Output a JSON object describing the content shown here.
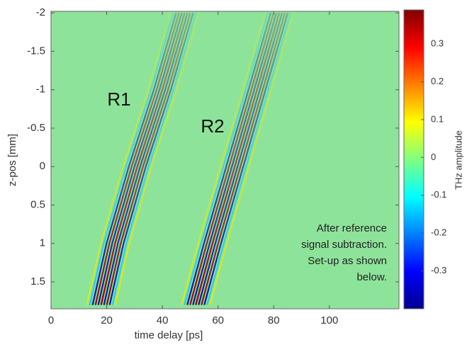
{
  "chart_data": {
    "type": "heatmap",
    "xlabel": "time delay [ps]",
    "ylabel": "z-pos [mm]",
    "xlim": [
      0,
      125
    ],
    "xticks": [
      0,
      20,
      40,
      60,
      80,
      100
    ],
    "ylim": [
      -2.02,
      1.85
    ],
    "yticks": [
      -2,
      -1.5,
      -1,
      -0.5,
      0,
      0.5,
      1,
      1.5
    ],
    "y_reversed": true,
    "colormap": "jet",
    "colorbar_label": "THz amplitude",
    "clim": [
      -0.4,
      0.39
    ],
    "cticks": [
      -0.3,
      -0.2,
      -0.1,
      0,
      0.1,
      0.2,
      0.3
    ],
    "series": [
      {
        "name": "R1",
        "z": [
          -2,
          -1,
          0,
          1,
          1.8
        ],
        "x": [
          48,
          40,
          31,
          23,
          18
        ]
      },
      {
        "name": "R2",
        "z": [
          -2,
          -1,
          0,
          1,
          1.8
        ],
        "x": [
          82,
          74,
          66,
          58,
          52
        ]
      }
    ],
    "annotation": [
      "After reference",
      "signal subtraction.",
      "Set-up as shown",
      "below."
    ]
  }
}
